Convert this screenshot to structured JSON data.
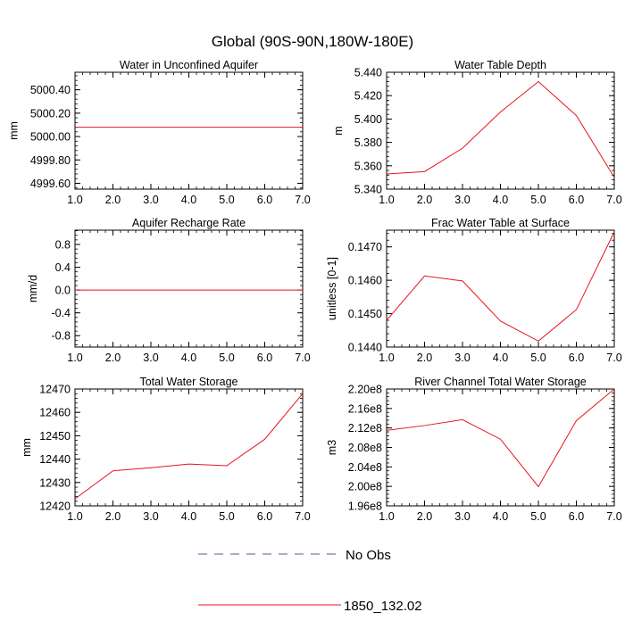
{
  "figure": {
    "title": "Global (90S-90N,180W-180E)"
  },
  "legend": {
    "entries": [
      {
        "label": "No Obs",
        "style": "dashed",
        "color": "#5a5a8c"
      },
      {
        "label": "1850_132.02",
        "style": "solid",
        "color": "#e8141e"
      }
    ]
  },
  "colors": {
    "series": "#e8141e",
    "axis": "#000000"
  },
  "chart_data": [
    {
      "type": "line",
      "title": "Water in Unconfined Aquifer",
      "ylabel": "mm",
      "xlabel": "",
      "x": [
        1,
        2,
        3,
        4,
        5,
        6,
        7
      ],
      "xlim": [
        1,
        7
      ],
      "xticks": [
        "1.0",
        "2.0",
        "3.0",
        "4.0",
        "5.0",
        "6.0",
        "7.0"
      ],
      "ylim": [
        4999.55,
        5000.55
      ],
      "yticks": [
        {
          "v": 4999.6,
          "label": "4999.60"
        },
        {
          "v": 4999.8,
          "label": "4999.80"
        },
        {
          "v": 5000.0,
          "label": "5000.00"
        },
        {
          "v": 5000.2,
          "label": "5000.20"
        },
        {
          "v": 5000.4,
          "label": "5000.40"
        }
      ],
      "series": [
        {
          "name": "1850_132.02",
          "values": [
            5000.08,
            5000.08,
            5000.08,
            5000.08,
            5000.08,
            5000.08,
            5000.08
          ]
        }
      ]
    },
    {
      "type": "line",
      "title": "Water Table Depth",
      "ylabel": "m",
      "xlabel": "",
      "x": [
        1,
        2,
        3,
        4,
        5,
        6,
        7
      ],
      "xlim": [
        1,
        7
      ],
      "xticks": [
        "1.0",
        "2.0",
        "3.0",
        "4.0",
        "5.0",
        "6.0",
        "7.0"
      ],
      "ylim": [
        5.34,
        5.44
      ],
      "yticks": [
        {
          "v": 5.34,
          "label": "5.340"
        },
        {
          "v": 5.36,
          "label": "5.360"
        },
        {
          "v": 5.38,
          "label": "5.380"
        },
        {
          "v": 5.4,
          "label": "5.400"
        },
        {
          "v": 5.42,
          "label": "5.420"
        },
        {
          "v": 5.44,
          "label": "5.440"
        }
      ],
      "series": [
        {
          "name": "1850_132.02",
          "values": [
            5.353,
            5.355,
            5.375,
            5.406,
            5.432,
            5.403,
            5.35
          ]
        }
      ]
    },
    {
      "type": "line",
      "title": "Aquifer Recharge Rate",
      "ylabel": "mm/d",
      "xlabel": "",
      "x": [
        1,
        2,
        3,
        4,
        5,
        6,
        7
      ],
      "xlim": [
        1,
        7
      ],
      "xticks": [
        "1.0",
        "2.0",
        "3.0",
        "4.0",
        "5.0",
        "6.0",
        "7.0"
      ],
      "ylim": [
        -1.0,
        1.05
      ],
      "yticks": [
        {
          "v": -0.8,
          "label": "-0.8"
        },
        {
          "v": -0.4,
          "label": "-0.4"
        },
        {
          "v": 0.0,
          "label": "0.0"
        },
        {
          "v": 0.4,
          "label": "0.4"
        },
        {
          "v": 0.8,
          "label": "0.8"
        }
      ],
      "series": [
        {
          "name": "1850_132.02",
          "values": [
            0,
            0,
            0,
            0,
            0,
            0,
            0
          ]
        }
      ]
    },
    {
      "type": "line",
      "title": "Frac Water Table at Surface",
      "ylabel": "unitless [0-1]",
      "xlabel": "",
      "x": [
        1,
        2,
        3,
        4,
        5,
        6,
        7
      ],
      "xlim": [
        1,
        7
      ],
      "xticks": [
        "1.0",
        "2.0",
        "3.0",
        "4.0",
        "5.0",
        "6.0",
        "7.0"
      ],
      "ylim": [
        0.144,
        0.1475
      ],
      "yticks": [
        {
          "v": 0.144,
          "label": "0.1440"
        },
        {
          "v": 0.145,
          "label": "0.1450"
        },
        {
          "v": 0.146,
          "label": "0.1460"
        },
        {
          "v": 0.147,
          "label": "0.1470"
        }
      ],
      "series": [
        {
          "name": "1850_132.02",
          "values": [
            0.1448,
            0.14613,
            0.14598,
            0.14478,
            0.14418,
            0.14512,
            0.14745
          ]
        }
      ]
    },
    {
      "type": "line",
      "title": "Total Water Storage",
      "ylabel": "mm",
      "xlabel": "",
      "x": [
        1,
        2,
        3,
        4,
        5,
        6,
        7
      ],
      "xlim": [
        1,
        7
      ],
      "xticks": [
        "1.0",
        "2.0",
        "3.0",
        "4.0",
        "5.0",
        "6.0",
        "7.0"
      ],
      "ylim": [
        12420,
        12470
      ],
      "yticks": [
        {
          "v": 12420,
          "label": "12420"
        },
        {
          "v": 12430,
          "label": "12430"
        },
        {
          "v": 12440,
          "label": "12440"
        },
        {
          "v": 12450,
          "label": "12450"
        },
        {
          "v": 12460,
          "label": "12460"
        },
        {
          "v": 12470,
          "label": "12470"
        }
      ],
      "series": [
        {
          "name": "1850_132.02",
          "values": [
            12423,
            12435,
            12436.3,
            12437.9,
            12437.2,
            12448.5,
            12468
          ]
        }
      ]
    },
    {
      "type": "line",
      "title": "River Channel Total Water Storage",
      "ylabel": "m3",
      "xlabel": "",
      "x": [
        1,
        2,
        3,
        4,
        5,
        6,
        7
      ],
      "xlim": [
        1,
        7
      ],
      "xticks": [
        "1.0",
        "2.0",
        "3.0",
        "4.0",
        "5.0",
        "6.0",
        "7.0"
      ],
      "ylim": [
        196000000.0,
        220000000.0
      ],
      "yticks": [
        {
          "v": 196000000.0,
          "label": "1.96e8"
        },
        {
          "v": 200000000.0,
          "label": "2.00e8"
        },
        {
          "v": 204000000.0,
          "label": "2.04e8"
        },
        {
          "v": 208000000.0,
          "label": "2.08e8"
        },
        {
          "v": 212000000.0,
          "label": "2.12e8"
        },
        {
          "v": 216000000.0,
          "label": "2.16e8"
        },
        {
          "v": 220000000.0,
          "label": "2.20e8"
        }
      ],
      "series": [
        {
          "name": "1850_132.02",
          "values": [
            211500000.0,
            212500000.0,
            213700000.0,
            209700000.0,
            199950000.0,
            213500000.0,
            220000000.0
          ]
        }
      ]
    }
  ]
}
